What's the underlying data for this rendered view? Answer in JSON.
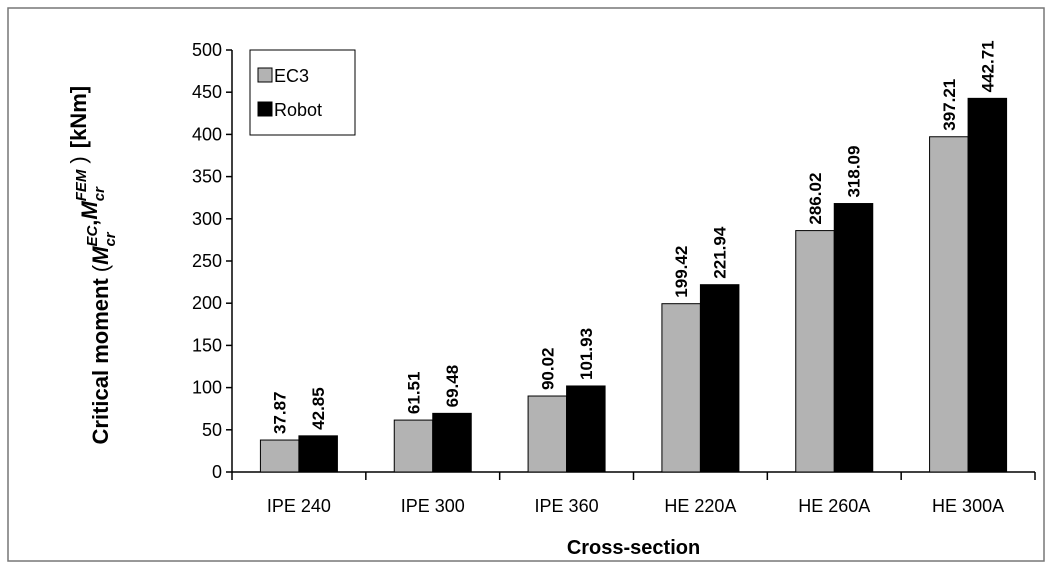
{
  "chart_data": {
    "type": "bar",
    "x_label": "Cross-section",
    "y_label": {
      "text": "Critical moment",
      "open": "(",
      "symbols": [
        {
          "base": "M",
          "sub": "cr",
          "sup": "EC"
        },
        {
          "base": "M",
          "sub": "cr",
          "sup": "FEM"
        }
      ],
      "sep": ",",
      "close": ")",
      "unit": "[kNm]"
    },
    "categories": [
      "IPE 240",
      "IPE 300",
      "IPE 360",
      "HE 220A",
      "HE 260A",
      "HE 300A"
    ],
    "series": [
      {
        "name": "EC3",
        "color": "#b3b3b3",
        "values": [
          37.87,
          61.51,
          90.02,
          199.42,
          286.02,
          397.21
        ]
      },
      {
        "name": "Robot",
        "color": "#000000",
        "values": [
          42.85,
          69.48,
          101.93,
          221.94,
          318.09,
          442.71
        ]
      }
    ],
    "ylim": [
      0,
      500
    ],
    "yticks": [
      0,
      50,
      100,
      150,
      200,
      250,
      300,
      350,
      400,
      450,
      500
    ],
    "grid": false,
    "legend": "top-left"
  }
}
